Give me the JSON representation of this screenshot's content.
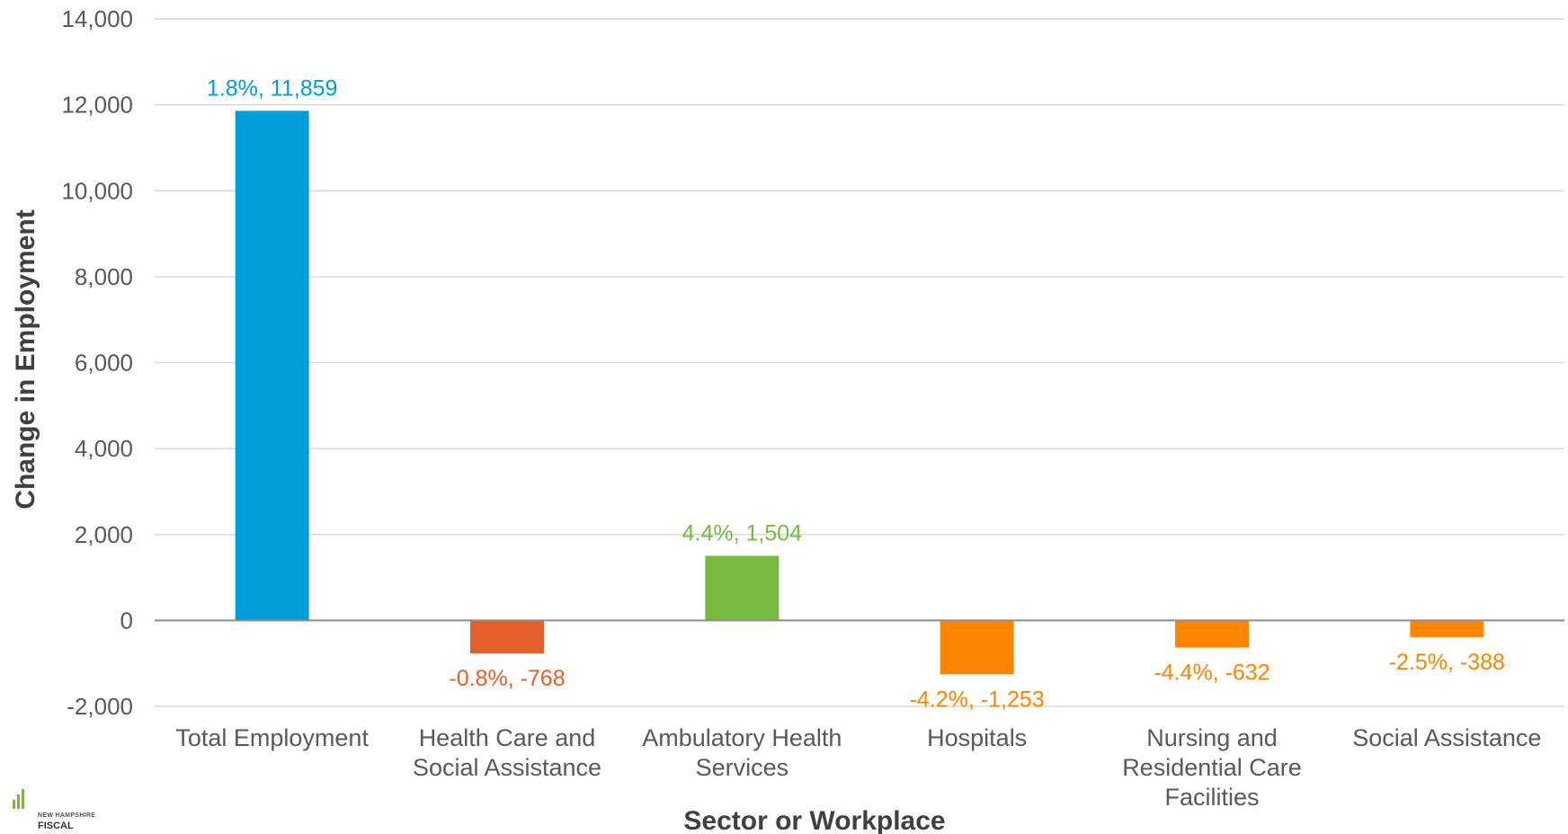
{
  "chart_data": {
    "type": "bar",
    "title": "",
    "xlabel": "Sector or Workplace",
    "ylabel": "Change in Employment",
    "ylim": [
      -2000,
      14000
    ],
    "yticks": [
      -2000,
      0,
      2000,
      4000,
      6000,
      8000,
      10000,
      12000,
      14000
    ],
    "ytick_labels": [
      "-2,000",
      "0",
      "2,000",
      "4,000",
      "6,000",
      "8,000",
      "10,000",
      "12,000",
      "14,000"
    ],
    "grid": true,
    "categories": [
      "Total Employment",
      "Health Care and Social Assistance",
      "Ambulatory Health Services",
      "Hospitals",
      "Nursing and Residential Care Facilities",
      "Social Assistance"
    ],
    "category_lines": [
      [
        "Total Employment"
      ],
      [
        "Health Care and",
        "Social Assistance"
      ],
      [
        "Ambulatory Health",
        "Services"
      ],
      [
        "Hospitals"
      ],
      [
        "Nursing and",
        "Residential Care",
        "Facilities"
      ],
      [
        "Social Assistance"
      ]
    ],
    "values": [
      11859,
      -768,
      1504,
      -1253,
      -632,
      -388
    ],
    "percent_change": [
      1.8,
      -0.8,
      4.4,
      -4.2,
      -4.4,
      -2.5
    ],
    "data_labels": [
      "1.8%, 11,859",
      "-0.8%, -768",
      "4.4%, 1,504",
      "-4.2%, -1,253",
      "-4.4%, -632",
      "-2.5%, -388"
    ],
    "colors": [
      "#009ddb",
      "#e55f2c",
      "#76bb40",
      "#ff8500",
      "#ff8500",
      "#ff8500"
    ]
  },
  "logo": {
    "line1": "NEW HAMPSHIRE",
    "line2": "FISCAL",
    "accent": "#7cb342"
  }
}
